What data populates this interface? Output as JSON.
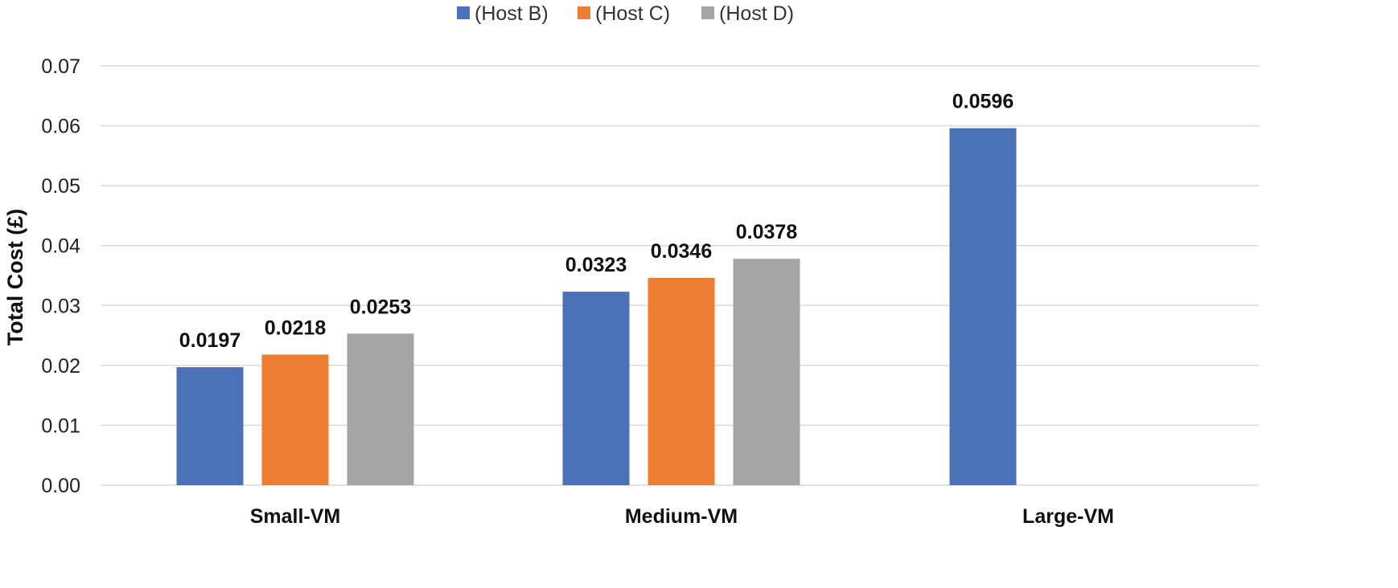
{
  "chart_data": {
    "type": "bar",
    "categories": [
      "Small-VM",
      "Medium-VM",
      "Large-VM"
    ],
    "series": [
      {
        "name": "(Host B)",
        "color": "#4a72b8",
        "values": [
          0.0197,
          0.0323,
          0.0596
        ],
        "labels": [
          "0.0197",
          "0.0323",
          "0.0596"
        ]
      },
      {
        "name": "(Host C)",
        "color": "#ed7d31",
        "values": [
          0.0218,
          0.0346,
          null
        ],
        "labels": [
          "0.0218",
          "0.0346",
          null
        ]
      },
      {
        "name": "(Host D)",
        "color": "#a5a5a5",
        "values": [
          0.0253,
          0.0378,
          null
        ],
        "labels": [
          "0.0253",
          "0.0378",
          null
        ]
      }
    ],
    "ylabel": "Total Cost (£)",
    "xlabel": "",
    "ylim": [
      0,
      0.07
    ],
    "yticks": [
      "0.00",
      "0.01",
      "0.02",
      "0.03",
      "0.04",
      "0.05",
      "0.06",
      "0.07"
    ],
    "grid": true,
    "legend_position": "top-center"
  }
}
